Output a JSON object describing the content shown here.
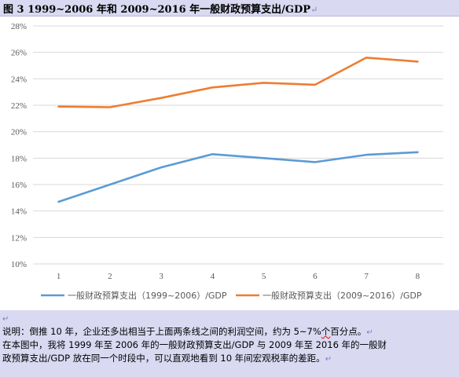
{
  "figure": {
    "title": "图 3  1999~2006 年和 2009~2016 年一般财政预算支出/GDP",
    "paragraph_mark": "↵"
  },
  "chart_data": {
    "type": "line",
    "title": "",
    "xlabel": "",
    "ylabel": "",
    "categories": [
      "1",
      "2",
      "3",
      "4",
      "5",
      "6",
      "7",
      "8"
    ],
    "series": [
      {
        "name": "一般财政预算支出（1999~2006）/GDP",
        "color": "#5b9bd5",
        "values": [
          14.7,
          16.0,
          17.3,
          18.3,
          18.0,
          17.7,
          18.25,
          18.45
        ]
      },
      {
        "name": "一般财政预算支出（2009~2016）/GDP",
        "color": "#ed7d31",
        "values": [
          21.9,
          21.85,
          22.55,
          23.35,
          23.7,
          23.55,
          25.6,
          25.3
        ]
      }
    ],
    "ylim": [
      10,
      28
    ],
    "yticks": [
      "10%",
      "12%",
      "14%",
      "16%",
      "18%",
      "20%",
      "22%",
      "24%",
      "26%",
      "28%"
    ],
    "grid": true,
    "legend_position": "bottom"
  },
  "caption": {
    "line1": "说明：倒推 10 年，企业还多出相当于上面两条线之间的利润空间，约为 5~7%",
    "line1_tail": "个",
    "line1_end": "百分点。",
    "line2": "在本图中，我将 1999 年至 2006 年的一般财政预算支出/GDP 与 2009 年至 2016 年的一般财",
    "line3": "政预算支出/GDP 放在同一个时段中，可以直观地看到 10 年间宏观税率的差距。",
    "top_mark": "↵",
    "line_mark": "↵"
  }
}
